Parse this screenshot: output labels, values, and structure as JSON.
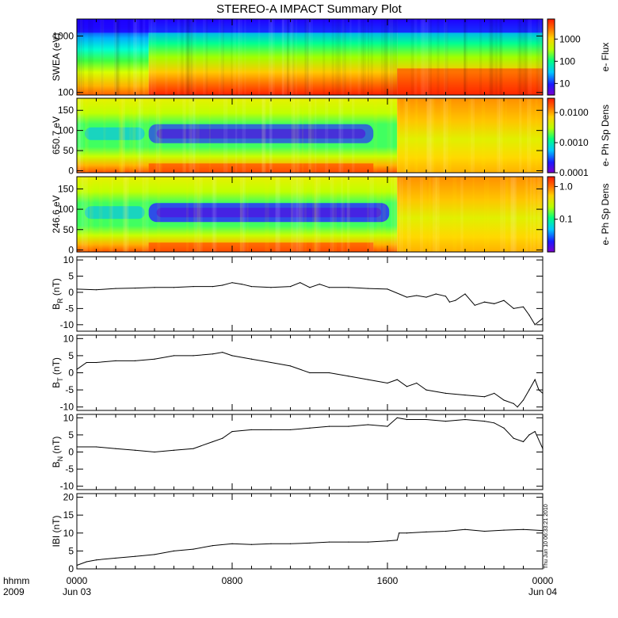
{
  "title": "STEREO-A IMPACT Summary Plot",
  "stamp": "Thu Jun 10 06:33:21 2010",
  "time_axis": {
    "corner_top": "hhmm",
    "corner_bottom": "2009",
    "ticks": [
      {
        "hours": 0,
        "top": "0000",
        "bottom": "Jun 03"
      },
      {
        "hours": 8,
        "top": "0800",
        "bottom": ""
      },
      {
        "hours": 16,
        "top": "1600",
        "bottom": ""
      },
      {
        "hours": 24,
        "top": "0000",
        "bottom": "Jun 04"
      }
    ],
    "range_hours": [
      0,
      24
    ]
  },
  "chart_data": [
    {
      "type": "heatmap",
      "ylabel": "SWEA (eV)",
      "ylog": true,
      "ylim": [
        90,
        2000
      ],
      "yticks": [
        {
          "v": 100,
          "label": "100"
        },
        {
          "v": 1000,
          "label": "1000"
        }
      ],
      "colorbar": {
        "label": "e- Flux",
        "log": true,
        "range": [
          3,
          8000
        ],
        "ticks": [
          {
            "v": 10,
            "label": "10"
          },
          {
            "v": 100,
            "label": "100"
          },
          {
            "v": 1000,
            "label": "1000"
          }
        ]
      },
      "regime_change_hours": [
        3.7,
        16.5
      ]
    },
    {
      "type": "heatmap",
      "ylabel": "650.7 eV",
      "ylim": [
        -5,
        180
      ],
      "yticks": [
        {
          "v": 0,
          "label": "0"
        },
        {
          "v": 50,
          "label": "50"
        },
        {
          "v": 100,
          "label": "100"
        },
        {
          "v": 150,
          "label": "150"
        }
      ],
      "colorbar": {
        "label": "e- Ph Sp Dens",
        "log": true,
        "range": [
          0.0001,
          0.03
        ],
        "ticks": [
          {
            "v": 0.0001,
            "label": "0.0001"
          },
          {
            "v": 0.001,
            "label": "0.0010"
          },
          {
            "v": 0.01,
            "label": "0.0100"
          }
        ]
      },
      "regime_change_hours": [
        3.7,
        16.5
      ]
    },
    {
      "type": "heatmap",
      "ylabel": "246.6 eV",
      "ylim": [
        -5,
        180
      ],
      "yticks": [
        {
          "v": 0,
          "label": "0"
        },
        {
          "v": 50,
          "label": "50"
        },
        {
          "v": 100,
          "label": "100"
        },
        {
          "v": 150,
          "label": "150"
        }
      ],
      "colorbar": {
        "label": "e- Ph Sp Dens",
        "log": true,
        "range": [
          0.01,
          2
        ],
        "ticks": [
          {
            "v": 0.1,
            "label": "0.1"
          },
          {
            "v": 1,
            "label": "1.0"
          }
        ]
      },
      "regime_change_hours": [
        3.7,
        16.5
      ]
    },
    {
      "type": "line",
      "ylabel": "B",
      "ylabel_sub": "R",
      "ylabel_unit": "(nT)",
      "ylim": [
        -12,
        11
      ],
      "yticks": [
        {
          "v": -10,
          "label": "-10"
        },
        {
          "v": -5,
          "label": "-5"
        },
        {
          "v": 0,
          "label": "0"
        },
        {
          "v": 5,
          "label": "5"
        },
        {
          "v": 10,
          "label": "10"
        }
      ],
      "x": [
        0,
        1,
        2,
        3,
        4,
        5,
        6,
        7,
        7.5,
        8,
        8.5,
        9,
        10,
        11,
        11.5,
        12,
        12.5,
        13,
        14,
        15,
        16,
        17,
        17.5,
        18,
        18.5,
        19,
        19.2,
        19.5,
        20,
        20.5,
        21,
        21.5,
        22,
        22.5,
        23,
        23.3,
        23.6,
        24
      ],
      "y": [
        1,
        0.8,
        1.2,
        1.3,
        1.5,
        1.5,
        1.8,
        1.8,
        2.2,
        3,
        2.5,
        1.8,
        1.5,
        1.8,
        3,
        1.5,
        2.5,
        1.5,
        1.5,
        1.2,
        1,
        -1.5,
        -1,
        -1.5,
        -0.5,
        -1.2,
        -3,
        -2.5,
        -0.5,
        -4,
        -3,
        -3.5,
        -2.5,
        -5,
        -4.5,
        -7,
        -10,
        -8
      ]
    },
    {
      "type": "line",
      "ylabel": "B",
      "ylabel_sub": "T",
      "ylabel_unit": "(nT)",
      "ylim": [
        -11,
        11
      ],
      "yticks": [
        {
          "v": -10,
          "label": "-10"
        },
        {
          "v": -5,
          "label": "-5"
        },
        {
          "v": 0,
          "label": "0"
        },
        {
          "v": 5,
          "label": "5"
        },
        {
          "v": 10,
          "label": "10"
        }
      ],
      "x": [
        0,
        0.5,
        1,
        2,
        3,
        4,
        5,
        6,
        7,
        7.5,
        8,
        9,
        10,
        11,
        12,
        13,
        14,
        15,
        16,
        16.5,
        17,
        17.5,
        18,
        19,
        20,
        21,
        21.5,
        22,
        22.5,
        22.7,
        23,
        23.3,
        23.6,
        23.8,
        24
      ],
      "y": [
        1,
        3,
        3,
        3.5,
        3.5,
        4,
        5,
        5,
        5.5,
        6,
        5,
        4,
        3,
        2,
        0,
        0,
        -1,
        -2,
        -3,
        -2,
        -4,
        -3,
        -5,
        -6,
        -6.5,
        -7,
        -6,
        -8,
        -9,
        -10,
        -8,
        -5,
        -2,
        -5,
        -6
      ]
    },
    {
      "type": "line",
      "ylabel": "B",
      "ylabel_sub": "N",
      "ylabel_unit": "(nT)",
      "ylim": [
        -11,
        11
      ],
      "yticks": [
        {
          "v": -10,
          "label": "-10"
        },
        {
          "v": -5,
          "label": "-5"
        },
        {
          "v": 0,
          "label": "0"
        },
        {
          "v": 5,
          "label": "5"
        },
        {
          "v": 10,
          "label": "10"
        }
      ],
      "x": [
        0,
        1,
        2,
        3,
        4,
        5,
        6,
        7,
        7.5,
        8,
        9,
        10,
        11,
        12,
        13,
        14,
        15,
        16,
        16.5,
        17,
        18,
        19,
        20,
        21,
        21.5,
        22,
        22.5,
        23,
        23.3,
        23.6,
        24
      ],
      "y": [
        1.5,
        1.5,
        1,
        0.5,
        0,
        0.5,
        1,
        3,
        4,
        6,
        6.5,
        6.5,
        6.5,
        7,
        7.5,
        7.5,
        8,
        7.5,
        10,
        9.5,
        9.5,
        9,
        9.5,
        9,
        8.5,
        7,
        4,
        3,
        5,
        6,
        1
      ]
    },
    {
      "type": "line",
      "ylabel": "IBI",
      "ylabel_unit": "(nT)",
      "ylim": [
        0,
        21
      ],
      "yticks": [
        {
          "v": 0,
          "label": "0"
        },
        {
          "v": 5,
          "label": "5"
        },
        {
          "v": 10,
          "label": "10"
        },
        {
          "v": 15,
          "label": "15"
        },
        {
          "v": 20,
          "label": "20"
        }
      ],
      "x": [
        0,
        0.5,
        1,
        2,
        3,
        4,
        5,
        6,
        7,
        8,
        9,
        10,
        11,
        12,
        13,
        14,
        15,
        16,
        16.5,
        16.6,
        17,
        18,
        19,
        20,
        21,
        22,
        23,
        24
      ],
      "y": [
        1,
        2,
        2.5,
        3,
        3.5,
        4,
        5,
        5.5,
        6.5,
        7,
        6.8,
        7,
        7,
        7.2,
        7.5,
        7.5,
        7.5,
        7.8,
        8,
        10,
        10,
        10.3,
        10.5,
        11,
        10.5,
        10.8,
        11,
        10.7
      ]
    }
  ]
}
